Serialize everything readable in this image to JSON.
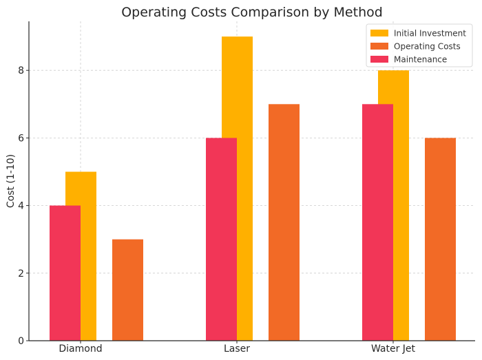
{
  "chart_data": {
    "type": "bar",
    "title": "Operating Costs Comparison by Method",
    "xlabel": "",
    "ylabel": "Cost (1-10)",
    "categories": [
      "Diamond",
      "Laser",
      "Water Jet"
    ],
    "series": [
      {
        "name": "Initial Investment",
        "values": [
          5,
          9,
          8
        ],
        "color": "#FFB000"
      },
      {
        "name": "Operating Costs",
        "values": [
          3,
          7,
          6
        ],
        "color": "#F26A26"
      },
      {
        "name": "Maintenance",
        "values": [
          4,
          6,
          7
        ],
        "color": "#F23657"
      }
    ],
    "yticks": [
      "0",
      "2",
      "4",
      "6",
      "8"
    ],
    "ylim": [
      0,
      9.45
    ],
    "grid": true,
    "legend_position": "top-right"
  }
}
